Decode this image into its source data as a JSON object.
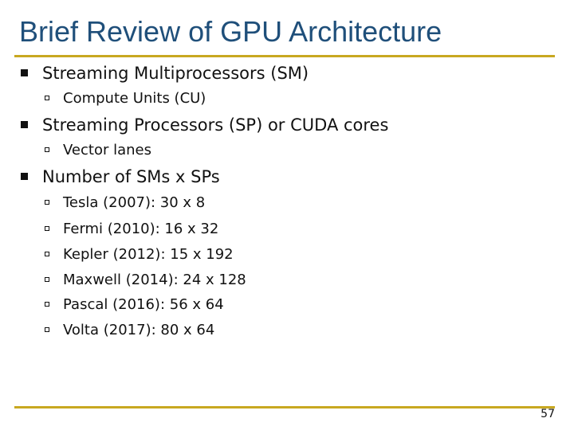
{
  "slide": {
    "title": "Brief Review of GPU Architecture",
    "page_number": "57",
    "accent_color": "#c8a820",
    "title_color": "#1f4f7a",
    "bullets": [
      {
        "text": "Streaming Multiprocessors (SM)",
        "sub": [
          "Compute Units (CU)"
        ]
      },
      {
        "text": "Streaming Processors (SP) or CUDA cores",
        "sub": [
          "Vector lanes"
        ]
      },
      {
        "text": "Number of SMs x SPs",
        "sub": [
          "Tesla (2007): 30 x 8",
          "Fermi (2010): 16 x 32",
          "Kepler (2012): 15 x 192",
          "Maxwell (2014): 24 x 128",
          "Pascal (2016): 56 x 64",
          "Volta (2017): 80 x 64"
        ]
      }
    ]
  }
}
